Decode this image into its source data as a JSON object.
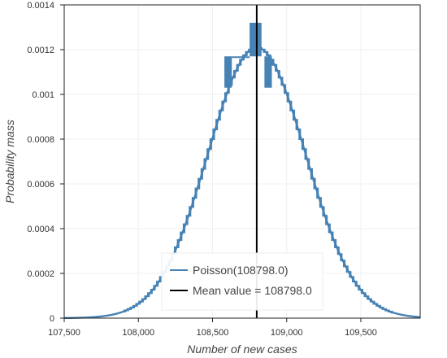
{
  "chart_data": {
    "type": "line",
    "xlabel": "Number of new cases",
    "ylabel": "Probability mass",
    "xlim": [
      107500,
      109900
    ],
    "ylim": [
      0,
      0.0014
    ],
    "x_ticks": [
      107500,
      108000,
      108500,
      109000,
      109500
    ],
    "x_tick_labels": [
      "107,500",
      "108,000",
      "108,500",
      "109,000",
      "109,500"
    ],
    "y_ticks": [
      0,
      0.0002,
      0.0004,
      0.0006,
      0.0008,
      0.001,
      0.0012,
      0.0014
    ],
    "y_tick_labels": [
      "0",
      "0.0002",
      "0.0004",
      "0.0006",
      "0.0008",
      "0.001",
      "0.0012",
      "0.0014"
    ],
    "grid": true,
    "legend_position": "bottom-center",
    "series": [
      {
        "name": "Poisson(108798.0)",
        "kind": "poisson_pmf",
        "lambda": 108798.0,
        "color": "#4682b4"
      },
      {
        "name": "Mean value = 108798.0",
        "kind": "vertical_line",
        "x": 108798.0,
        "color": "#000000"
      }
    ],
    "poisson_steps": [
      {
        "x": [
          107500,
          107800
        ],
        "y": [
          0.0,
          0.0
        ]
      },
      {
        "x": [
          107800,
          108000
        ],
        "y": [
          0.0,
          0.0
        ]
      },
      {
        "x": [
          108000,
          108200
        ],
        "y": [
          3e-05,
          0.00012
        ]
      },
      {
        "x": [
          108200,
          108300
        ],
        "y": [
          0.00012,
          0.00026
        ]
      },
      {
        "x": [
          108300,
          108400
        ],
        "y": [
          0.00026,
          0.00046
        ]
      },
      {
        "x": [
          108400,
          108500
        ],
        "y": [
          0.00046,
          0.0007
        ]
      },
      {
        "x": [
          108500,
          108600
        ],
        "y": [
          0.0007,
          0.00092
        ]
      },
      {
        "x": [
          108600,
          108700
        ],
        "y": [
          0.00092,
          0.00113
        ]
      },
      {
        "x": [
          108700,
          108798
        ],
        "y": [
          0.00113,
          0.00132
        ]
      }
    ],
    "poisson_peak_bands": [
      {
        "x": [
          108580,
          108630
        ],
        "y_low": 0.00103,
        "y_high": 0.00117
      },
      {
        "x": [
          108630,
          108750
        ],
        "y_low": 0.00117,
        "y_high": 0.00117
      },
      {
        "x": [
          108750,
          108800
        ],
        "y_low": 0.00117,
        "y_high": 0.00132
      },
      {
        "x": [
          108800,
          108830
        ],
        "y_low": 0.00117,
        "y_high": 0.00132
      },
      {
        "x": [
          108850,
          108900
        ],
        "y_low": 0.00103,
        "y_high": 0.00117
      }
    ]
  },
  "legend": {
    "items": [
      {
        "label": "Poisson(108798.0)",
        "color": "#4682b4"
      },
      {
        "label": "Mean value = 108798.0",
        "color": "#000000"
      }
    ]
  }
}
